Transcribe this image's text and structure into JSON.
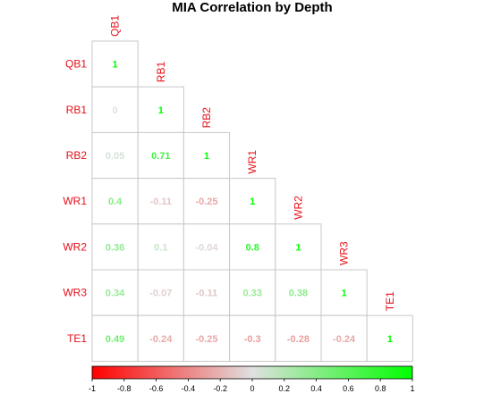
{
  "chart_data": {
    "type": "heatmap",
    "title": "MIA Correlation by Depth",
    "variables": [
      "QB1",
      "RB1",
      "RB2",
      "WR1",
      "WR2",
      "WR3",
      "TE1"
    ],
    "matrix_lower": [
      [
        1
      ],
      [
        0,
        1
      ],
      [
        0.05,
        0.71,
        1
      ],
      [
        0.4,
        -0.11,
        -0.25,
        1
      ],
      [
        0.36,
        0.1,
        -0.04,
        0.8,
        1
      ],
      [
        0.34,
        -0.07,
        -0.11,
        0.33,
        0.38,
        1
      ],
      [
        0.49,
        -0.24,
        -0.25,
        -0.3,
        -0.28,
        -0.24,
        1
      ]
    ],
    "colorbar": {
      "range": [
        -1,
        1
      ],
      "ticks": [
        "-1",
        "-0.8",
        "-0.6",
        "-0.4",
        "-0.2",
        "0",
        "0.2",
        "0.4",
        "0.6",
        "0.8",
        "1"
      ],
      "colors": [
        "#ff0000",
        "#e0e0e0",
        "#00ff00"
      ]
    },
    "label_color": "#e8101a"
  }
}
